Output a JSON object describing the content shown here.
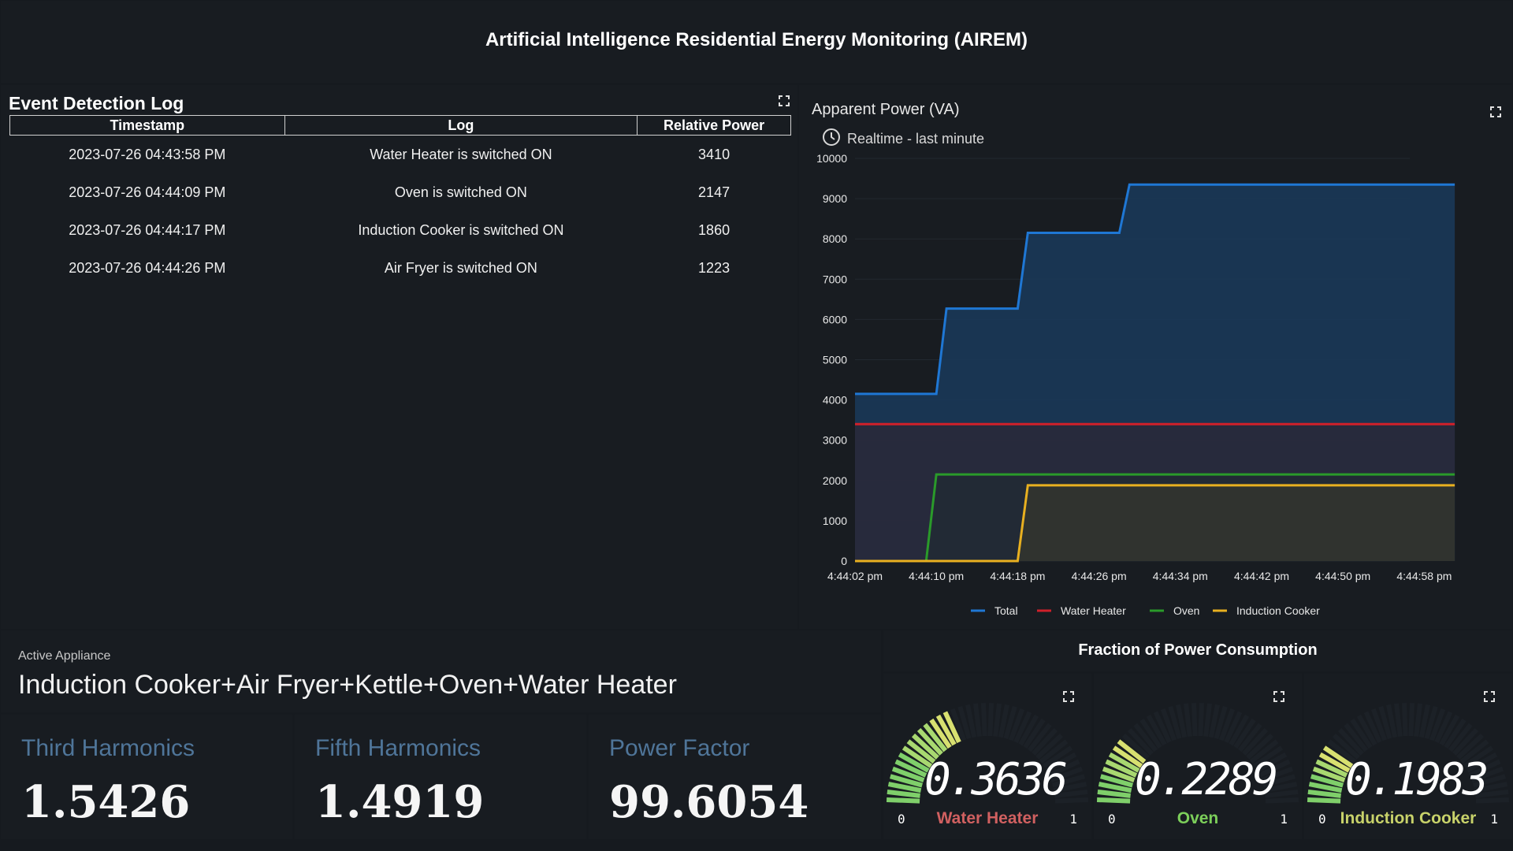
{
  "header": {
    "title": "Artificial Intelligence Residential Energy Monitoring (AIREM)"
  },
  "event_log": {
    "title": "Event Detection Log",
    "columns": [
      "Timestamp",
      "Log",
      "Relative Power"
    ],
    "rows": [
      [
        "2023-07-26 04:43:58 PM",
        "Water Heater is switched ON",
        "3410"
      ],
      [
        "2023-07-26 04:44:09 PM",
        "Oven is switched ON",
        "2147"
      ],
      [
        "2023-07-26 04:44:17 PM",
        "Induction Cooker is switched ON",
        "1860"
      ],
      [
        "2023-07-26 04:44:26 PM",
        "Air Fryer is switched ON",
        "1223"
      ]
    ]
  },
  "chart_data": {
    "type": "area",
    "title": "Apparent Power (VA)",
    "subtitle": "Realtime - last minute",
    "ylim": [
      0,
      10000
    ],
    "yticks": [
      "0",
      "1000",
      "2000",
      "3000",
      "4000",
      "5000",
      "6000",
      "7000",
      "8000",
      "9000",
      "10000"
    ],
    "xlim": [
      0,
      60
    ],
    "xticks": [
      {
        "t": 0,
        "label": "4:44:02 pm"
      },
      {
        "t": 8,
        "label": "4:44:10 pm"
      },
      {
        "t": 16,
        "label": "4:44:18 pm"
      },
      {
        "t": 24,
        "label": "4:44:26 pm"
      },
      {
        "t": 32,
        "label": "4:44:34 pm"
      },
      {
        "t": 40,
        "label": "4:44:42 pm"
      },
      {
        "t": 48,
        "label": "4:44:50 pm"
      },
      {
        "t": 56,
        "label": "4:44:58 pm"
      }
    ],
    "legend_position": "bottom",
    "series": [
      {
        "name": "Total",
        "color": "#1f77d4",
        "fill": "#1a3a5a",
        "points": [
          [
            0,
            4150
          ],
          [
            8,
            4150
          ],
          [
            9,
            6270
          ],
          [
            16,
            6270
          ],
          [
            17,
            8150
          ],
          [
            26,
            8150
          ],
          [
            27,
            9350
          ],
          [
            59,
            9350
          ]
        ]
      },
      {
        "name": "Water Heater",
        "color": "#d0202a",
        "fill": "#2a2838",
        "points": [
          [
            0,
            3400
          ],
          [
            59,
            3400
          ]
        ]
      },
      {
        "name": "Oven",
        "color": "#2a9a2a",
        "fill": "#222a34",
        "points": [
          [
            0,
            0
          ],
          [
            7,
            0
          ],
          [
            8,
            2150
          ],
          [
            59,
            2150
          ]
        ]
      },
      {
        "name": "Induction Cooker",
        "color": "#e8b020",
        "fill": "#33352e",
        "points": [
          [
            0,
            0
          ],
          [
            16,
            0
          ],
          [
            17,
            1880
          ],
          [
            59,
            1880
          ]
        ]
      }
    ]
  },
  "active": {
    "label": "Active Appliance",
    "value": "Induction Cooker+Air Fryer+Kettle+Oven+Water Heater"
  },
  "stats": [
    {
      "label": "Third Harmonics",
      "value": "1.5426"
    },
    {
      "label": "Fifth Harmonics",
      "value": "1.4919"
    },
    {
      "label": "Power Factor",
      "value": "99.6054"
    }
  ],
  "fraction": {
    "title": "Fraction of Power Consumption",
    "gauges": [
      {
        "name": "Water Heater",
        "value": "0.3636",
        "fraction": 0.3636,
        "min": "0",
        "max": "1",
        "name_color": "#d06060"
      },
      {
        "name": "Oven",
        "value": "0.2289",
        "fraction": 0.2289,
        "min": "0",
        "max": "1",
        "name_color": "#7ccf5a"
      },
      {
        "name": "Induction Cooker",
        "value": "0.1983",
        "fraction": 0.1983,
        "min": "0",
        "max": "1",
        "name_color": "#c8d26a"
      }
    ]
  }
}
